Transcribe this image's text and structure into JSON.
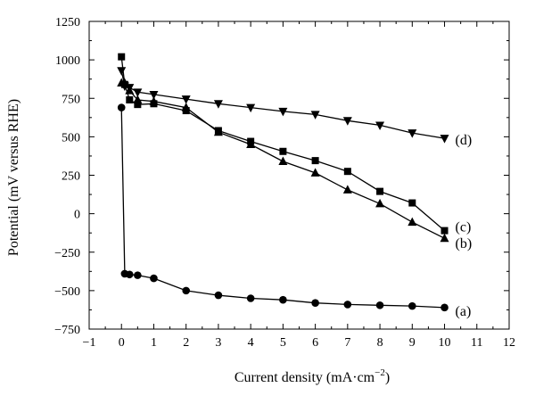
{
  "chart_data": {
    "type": "line",
    "xlabel": "Current density (mA·cm",
    "xlabel_superscript": "−2",
    "xlabel_close": ")",
    "ylabel": "Potential (mV versus RHE)",
    "xlim": [
      -1,
      12
    ],
    "ylim": [
      -750,
      1250
    ],
    "xticks": [
      -1,
      0,
      1,
      2,
      3,
      4,
      5,
      6,
      7,
      8,
      9,
      10,
      11,
      12
    ],
    "xtick_labels": [
      "−1",
      "0",
      "1",
      "2",
      "3",
      "4",
      "5",
      "6",
      "7",
      "8",
      "9",
      "10",
      "11",
      "12"
    ],
    "yticks": [
      -750,
      -500,
      -250,
      0,
      250,
      500,
      750,
      1000,
      1250
    ],
    "ytick_labels": [
      "−750",
      "−500",
      "−250",
      "0",
      "250",
      "500",
      "750",
      "1000",
      "1250"
    ],
    "grid": false,
    "series": [
      {
        "name": "(a)",
        "marker": "circle",
        "x": [
          0,
          0.1,
          0.25,
          0.5,
          1,
          2,
          3,
          4,
          5,
          6,
          7,
          8,
          9,
          10
        ],
        "y": [
          690,
          -390,
          -395,
          -400,
          -420,
          -500,
          -530,
          -550,
          -560,
          -580,
          -590,
          -595,
          -600,
          -610
        ]
      },
      {
        "name": "(b)",
        "marker": "triangle-up",
        "x": [
          0,
          0.1,
          0.25,
          0.5,
          1,
          2,
          3,
          4,
          5,
          6,
          7,
          8,
          9,
          10
        ],
        "y": [
          850,
          850,
          800,
          740,
          730,
          690,
          530,
          450,
          340,
          265,
          155,
          65,
          -55,
          -160
        ]
      },
      {
        "name": "(c)",
        "marker": "square",
        "x": [
          0,
          0.1,
          0.25,
          0.5,
          1,
          2,
          3,
          4,
          5,
          6,
          7,
          8,
          9,
          10
        ],
        "y": [
          1020,
          840,
          740,
          710,
          715,
          670,
          540,
          470,
          405,
          345,
          275,
          145,
          70,
          -110
        ]
      },
      {
        "name": "(d)",
        "marker": "triangle-down",
        "x": [
          0,
          0.1,
          0.25,
          0.5,
          1,
          2,
          3,
          4,
          5,
          6,
          7,
          8,
          9,
          10
        ],
        "y": [
          930,
          830,
          820,
          790,
          775,
          745,
          715,
          690,
          665,
          645,
          605,
          575,
          525,
          490
        ]
      }
    ]
  }
}
